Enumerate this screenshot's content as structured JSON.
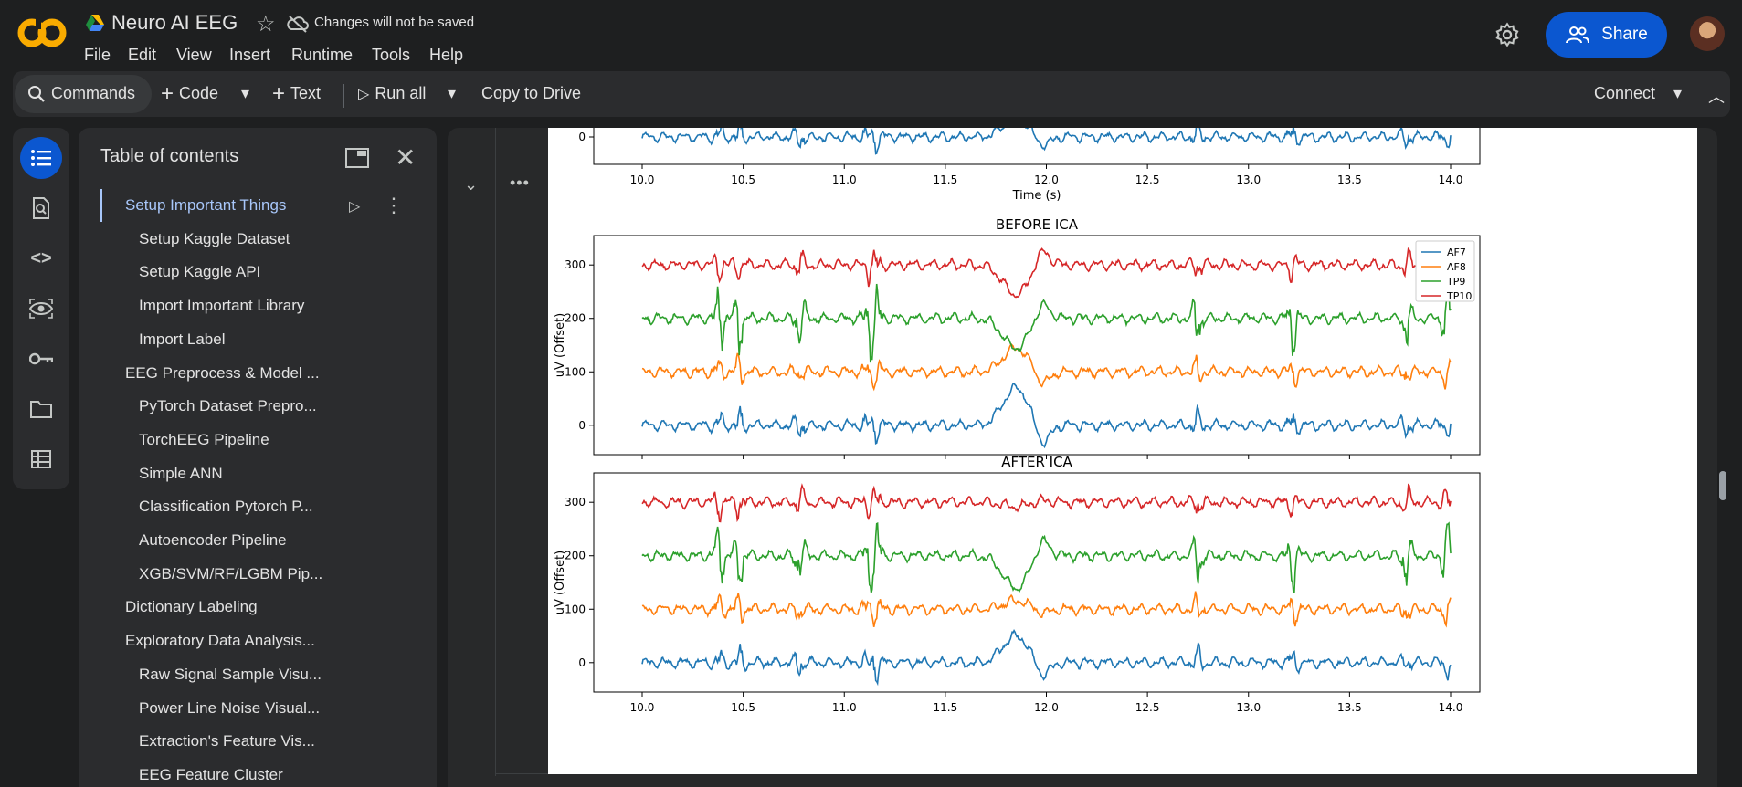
{
  "app": {
    "title": "Neuro AI EEG",
    "unsaved_note": "Changes will not be saved",
    "share_label": "Share",
    "menu": [
      "File",
      "Edit",
      "View",
      "Insert",
      "Runtime",
      "Tools",
      "Help"
    ]
  },
  "toolbar": {
    "commands": "Commands",
    "code": "Code",
    "text": "Text",
    "run_all": "Run all",
    "copy_to_drive": "Copy to Drive",
    "connect": "Connect"
  },
  "rail_icons": [
    "toc-icon",
    "find-icon",
    "code-snippets-icon",
    "variables-icon",
    "secrets-icon",
    "files-icon",
    "data-table-icon"
  ],
  "toc": {
    "title": "Table of contents",
    "items": [
      {
        "label": "Setup Important Things",
        "level": 1,
        "active": true
      },
      {
        "label": "Setup Kaggle Dataset",
        "level": 2
      },
      {
        "label": "Setup Kaggle API",
        "level": 2
      },
      {
        "label": "Import Important Library",
        "level": 2
      },
      {
        "label": "Import Label",
        "level": 2
      },
      {
        "label": "EEG Preprocess & Model ...",
        "level": 1
      },
      {
        "label": "PyTorch Dataset Prepro...",
        "level": 2
      },
      {
        "label": "TorchEEG Pipeline",
        "level": 2
      },
      {
        "label": "Simple ANN",
        "level": 2
      },
      {
        "label": "Classification Pytorch P...",
        "level": 2
      },
      {
        "label": "Autoencoder Pipeline",
        "level": 2
      },
      {
        "label": "XGB/SVM/RF/LGBM Pip...",
        "level": 2
      },
      {
        "label": "Dictionary Labeling",
        "level": 1
      },
      {
        "label": "Exploratory Data Analysis...",
        "level": 1
      },
      {
        "label": "Raw Signal Sample Visu...",
        "level": 2
      },
      {
        "label": "Power Line Noise Visual...",
        "level": 2
      },
      {
        "label": "Extraction's Feature Vis...",
        "level": 2
      },
      {
        "label": "EEG Feature Cluster",
        "level": 2
      }
    ]
  },
  "colors": {
    "AF7": "#1f77b4",
    "AF8": "#ff7f0e",
    "TP9": "#2ca02c",
    "TP10": "#d62728",
    "share_bg": "#0b57d0"
  },
  "chart_data": [
    {
      "type": "line",
      "title": "",
      "xlabel": "Time (s)",
      "ylabel": "",
      "xlim": [
        10.0,
        14.0
      ],
      "xticks": [
        "10.0",
        "10.5",
        "11.0",
        "11.5",
        "12.0",
        "12.5",
        "13.0",
        "13.5",
        "14.0"
      ],
      "yticks": [
        "0"
      ],
      "note": "partially visible top plot, only AF7 trace at offset 0 shown",
      "series": [
        {
          "name": "AF7",
          "offset": 0,
          "artifact_peak": 35
        }
      ]
    },
    {
      "type": "line",
      "title": "BEFORE ICA",
      "xlabel": "",
      "ylabel": "uV (Offset)",
      "xlim": [
        10.0,
        14.0
      ],
      "ylim": [
        -55,
        355
      ],
      "yticks": [
        "0",
        "100",
        "200",
        "300"
      ],
      "legend": [
        "AF7",
        "AF8",
        "TP9",
        "TP10"
      ],
      "legend_position": "top-right",
      "series": [
        {
          "name": "AF7",
          "offset": 0,
          "artifact_peak": 70
        },
        {
          "name": "AF8",
          "offset": 100,
          "artifact_peak": 45
        },
        {
          "name": "TP9",
          "offset": 200,
          "artifact_peak": -55
        },
        {
          "name": "TP10",
          "offset": 300,
          "artifact_peak": -55
        }
      ]
    },
    {
      "type": "line",
      "title": "AFTER ICA",
      "xlabel": "",
      "ylabel": "uV (Offset)",
      "xlim": [
        10.0,
        14.0
      ],
      "ylim": [
        -55,
        355
      ],
      "xticks": [
        "10.0",
        "10.5",
        "11.0",
        "11.5",
        "12.0",
        "12.5",
        "13.0",
        "13.5",
        "14.0"
      ],
      "yticks": [
        "0",
        "100",
        "200",
        "300"
      ],
      "series": [
        {
          "name": "AF7",
          "offset": 0,
          "artifact_peak": 50
        },
        {
          "name": "AF8",
          "offset": 100,
          "artifact_peak": 15
        },
        {
          "name": "TP9",
          "offset": 200,
          "artifact_peak": -60
        },
        {
          "name": "TP10",
          "offset": 300,
          "artifact_peak": -8
        }
      ]
    }
  ]
}
